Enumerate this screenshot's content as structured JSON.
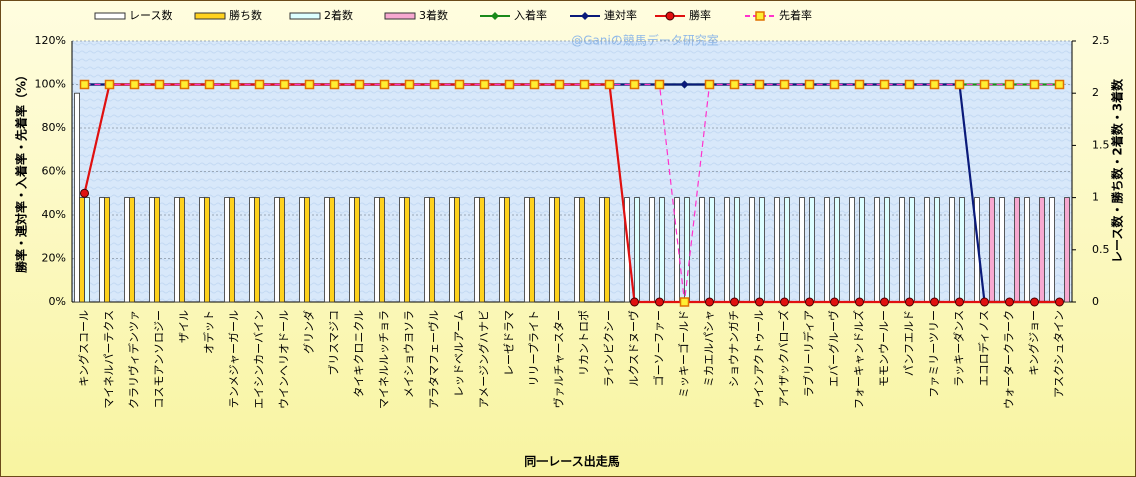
{
  "chart_data": {
    "type": "combo",
    "watermark": "@Ganiの競馬データ研究室",
    "x_label": "同一レース出走馬",
    "y_label": "勝率・連対率・入着率・先着率（%）",
    "y2_label": "レース数・勝ち数・2着数・3着数",
    "categories": [
      "キングスコール",
      "マイネルパーテクス",
      "クラリヴィデンツァ",
      "コスモアンソロジー",
      "ザイル",
      "オデット",
      "テンメジャーガール",
      "エイシンカーバイン",
      "ウインヘリオドール",
      "グリンダ",
      "ブリスマジコ",
      "タイキクロニクル",
      "マイネルルッチョラ",
      "メイショウヨソラ",
      "アラタマフェーヴル",
      "レッドベルアーム",
      "アメージングハナビ",
      "レーゼドラマ",
      "リリープライト",
      "ヴァルチャースター",
      "リカントロポ",
      "ラインビクシー",
      "ルクスドヌーヴ",
      "ゴーソーファー",
      "ミッキーゴールド",
      "ミカエルパシャ",
      "ショウナンガチ",
      "ウインアクトゥール",
      "アイザックバローズ",
      "ラブリーリディア",
      "エバーグルーヴ",
      "フォーキャンドルズ",
      "モモンウールー",
      "パンフエルド",
      "ファミリーツリー",
      "ラッキーダンス",
      "エコロディノス",
      "ウォータークラーク",
      "キングジョー",
      "アスクシュタイン"
    ],
    "ylim": [
      0,
      120
    ],
    "yticks": [
      {
        "value": 0,
        "label": "0%"
      },
      {
        "value": 20,
        "label": "20%"
      },
      {
        "value": 40,
        "label": "40%"
      },
      {
        "value": 60,
        "label": "60%"
      },
      {
        "value": 80,
        "label": "80%"
      },
      {
        "value": 100,
        "label": "100%"
      },
      {
        "value": 120,
        "label": "120%"
      }
    ],
    "y2lim": [
      0,
      2.5
    ],
    "y2ticks": [
      0,
      0.5,
      1,
      1.5,
      2,
      2.5
    ],
    "grid": true,
    "series": [
      {
        "name": "レース数",
        "kind": "bar",
        "axis": "y2",
        "color": "#ffffff",
        "values": [
          2,
          1,
          1,
          1,
          1,
          1,
          1,
          1,
          1,
          1,
          1,
          1,
          1,
          1,
          1,
          1,
          1,
          1,
          1,
          1,
          1,
          1,
          1,
          1,
          1,
          1,
          1,
          1,
          1,
          1,
          1,
          1,
          1,
          1,
          1,
          1,
          1,
          1,
          1,
          1
        ]
      },
      {
        "name": "勝ち数",
        "kind": "bar",
        "axis": "y2",
        "color": "#ffd21e",
        "values": [
          1,
          1,
          1,
          1,
          1,
          1,
          1,
          1,
          1,
          1,
          1,
          1,
          1,
          1,
          1,
          1,
          1,
          1,
          1,
          1,
          1,
          1,
          0,
          0,
          0,
          0,
          0,
          0,
          0,
          0,
          0,
          0,
          0,
          0,
          0,
          0,
          0,
          0,
          0,
          0
        ]
      },
      {
        "name": "2着数",
        "kind": "bar",
        "axis": "y2",
        "color": "#ddffff",
        "values": [
          1,
          0,
          0,
          0,
          0,
          0,
          0,
          0,
          0,
          0,
          0,
          0,
          0,
          0,
          0,
          0,
          0,
          0,
          0,
          0,
          0,
          0,
          1,
          1,
          1,
          1,
          1,
          1,
          1,
          1,
          1,
          1,
          1,
          1,
          1,
          1,
          0,
          0,
          0,
          0
        ]
      },
      {
        "name": "3着数",
        "kind": "bar",
        "axis": "y2",
        "color": "#f7a8d0",
        "values": [
          0,
          0,
          0,
          0,
          0,
          0,
          0,
          0,
          0,
          0,
          0,
          0,
          0,
          0,
          0,
          0,
          0,
          0,
          0,
          0,
          0,
          0,
          0,
          0,
          0,
          0,
          0,
          0,
          0,
          0,
          0,
          0,
          0,
          0,
          0,
          0,
          1,
          1,
          1,
          1
        ]
      },
      {
        "name": "入着率",
        "kind": "line",
        "marker": "diamond",
        "color": "#1a8a1a",
        "values": [
          100,
          100,
          100,
          100,
          100,
          100,
          100,
          100,
          100,
          100,
          100,
          100,
          100,
          100,
          100,
          100,
          100,
          100,
          100,
          100,
          100,
          100,
          100,
          100,
          100,
          100,
          100,
          100,
          100,
          100,
          100,
          100,
          100,
          100,
          100,
          100,
          100,
          100,
          100,
          100
        ]
      },
      {
        "name": "連対率",
        "kind": "line",
        "marker": "diamond",
        "color": "#0a1a7a",
        "values": [
          100,
          100,
          100,
          100,
          100,
          100,
          100,
          100,
          100,
          100,
          100,
          100,
          100,
          100,
          100,
          100,
          100,
          100,
          100,
          100,
          100,
          100,
          100,
          100,
          100,
          100,
          100,
          100,
          100,
          100,
          100,
          100,
          100,
          100,
          100,
          100,
          0,
          0,
          0,
          0
        ]
      },
      {
        "name": "勝率",
        "kind": "line",
        "marker": "circle",
        "color": "#e01010",
        "values": [
          50,
          100,
          100,
          100,
          100,
          100,
          100,
          100,
          100,
          100,
          100,
          100,
          100,
          100,
          100,
          100,
          100,
          100,
          100,
          100,
          100,
          100,
          0,
          0,
          0,
          0,
          0,
          0,
          0,
          0,
          0,
          0,
          0,
          0,
          0,
          0,
          0,
          0,
          0,
          0
        ]
      },
      {
        "name": "先着率",
        "kind": "line",
        "marker": "square",
        "dash": true,
        "color": "#ff33cc",
        "values": [
          100,
          100,
          100,
          100,
          100,
          100,
          100,
          100,
          100,
          100,
          100,
          100,
          100,
          100,
          100,
          100,
          100,
          100,
          100,
          100,
          100,
          100,
          100,
          100,
          0,
          100,
          100,
          100,
          100,
          100,
          100,
          100,
          100,
          100,
          100,
          100,
          100,
          100,
          100,
          100
        ]
      }
    ]
  }
}
